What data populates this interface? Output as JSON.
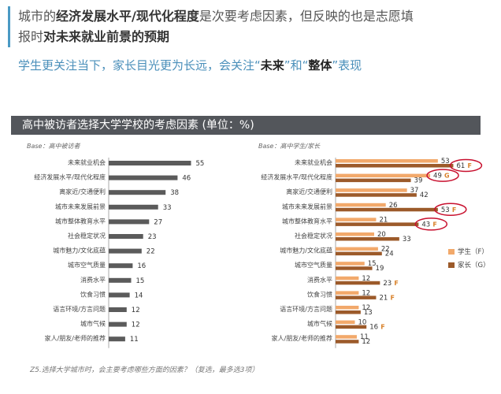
{
  "header": {
    "line1_parts": [
      {
        "text": "城市的",
        "bold": false
      },
      {
        "text": "经济发展水平/现代化程度",
        "bold": true
      },
      {
        "text": "是次要考虑因素，但反映的也是志愿填",
        "bold": false
      }
    ],
    "line2_parts": [
      {
        "text": "报时",
        "bold": false
      },
      {
        "text": "对未来就业前景的预期",
        "bold": true
      }
    ],
    "subline_parts": [
      {
        "text": "学生更关注当下，家长目光更为长远，会关注“",
        "bold": false
      },
      {
        "text": "未来",
        "bold": true
      },
      {
        "text": "”和“",
        "bold": false
      },
      {
        "text": "整体",
        "bold": true
      },
      {
        "text": "”表现",
        "bold": false
      }
    ]
  },
  "chart_title": "高中被访者选择大学学校的考虑因素 (单位：%)",
  "footnote": "Z5.选择大学城市时，会主要考虑哪些方面的因素？（复选，最多选3项）",
  "colors": {
    "accent_blue": "#4a8fba",
    "title_bar": "#53565b",
    "left_bar": "#5b5b5b",
    "student_bar": "#f2a96b",
    "parent_bar": "#9c5a2a",
    "highlight_ring": "#c8102e"
  },
  "chart_data": [
    {
      "type": "bar",
      "orientation": "horizontal",
      "base_label": "Base：高中被访者",
      "categories": [
        "未来就业机会",
        "经济发展水平/现代化程度",
        "离家近/交通便利",
        "城市未来发展前景",
        "城市整体教育水平",
        "社会稳定状况",
        "城市魅力/文化底蕴",
        "城市空气质量",
        "消费水平",
        "饮食习惯",
        "语言环境/方言问题",
        "城市气候",
        "家人/朋友/老师的推荐"
      ],
      "values": [
        55,
        46,
        38,
        33,
        27,
        23,
        22,
        16,
        15,
        14,
        12,
        12,
        11
      ]
    },
    {
      "type": "bar",
      "orientation": "horizontal",
      "base_label": "Base：高中学生/家长",
      "categories": [
        "未来就业机会",
        "经济发展水平/现代化程度",
        "离家近/交通便利",
        "城市未来发展前景",
        "城市整体教育水平",
        "社会稳定状况",
        "城市魅力/文化底蕴",
        "城市空气质量",
        "消费水平",
        "饮食习惯",
        "语言环境/方言问题",
        "城市气候",
        "家人/朋友/老师的推荐"
      ],
      "series": [
        {
          "name": "学生（F）",
          "values": [
            53,
            49,
            37,
            26,
            21,
            20,
            22,
            15,
            12,
            12,
            12,
            10,
            11
          ]
        },
        {
          "name": "家长（G）",
          "values": [
            61,
            39,
            42,
            53,
            43,
            33,
            24,
            19,
            23,
            21,
            13,
            16,
            12
          ]
        }
      ],
      "annotations": [
        {
          "category": "未来就业机会",
          "series": "家长（G）",
          "mark": "F",
          "circled": true
        },
        {
          "category": "经济发展水平/现代化程度",
          "series": "学生（F）",
          "mark": "G",
          "circled": true
        },
        {
          "category": "城市未来发展前景",
          "series": "家长（G）",
          "mark": "F",
          "circled": true
        },
        {
          "category": "城市整体教育水平",
          "series": "家长（G）",
          "mark": "F",
          "circled": true
        },
        {
          "category": "消费水平",
          "series": "家长（G）",
          "mark": "F",
          "circled": false
        },
        {
          "category": "饮食习惯",
          "series": "家长（G）",
          "mark": "F",
          "circled": false
        },
        {
          "category": "城市气候",
          "series": "家长（G）",
          "mark": "F",
          "circled": false
        }
      ]
    }
  ]
}
